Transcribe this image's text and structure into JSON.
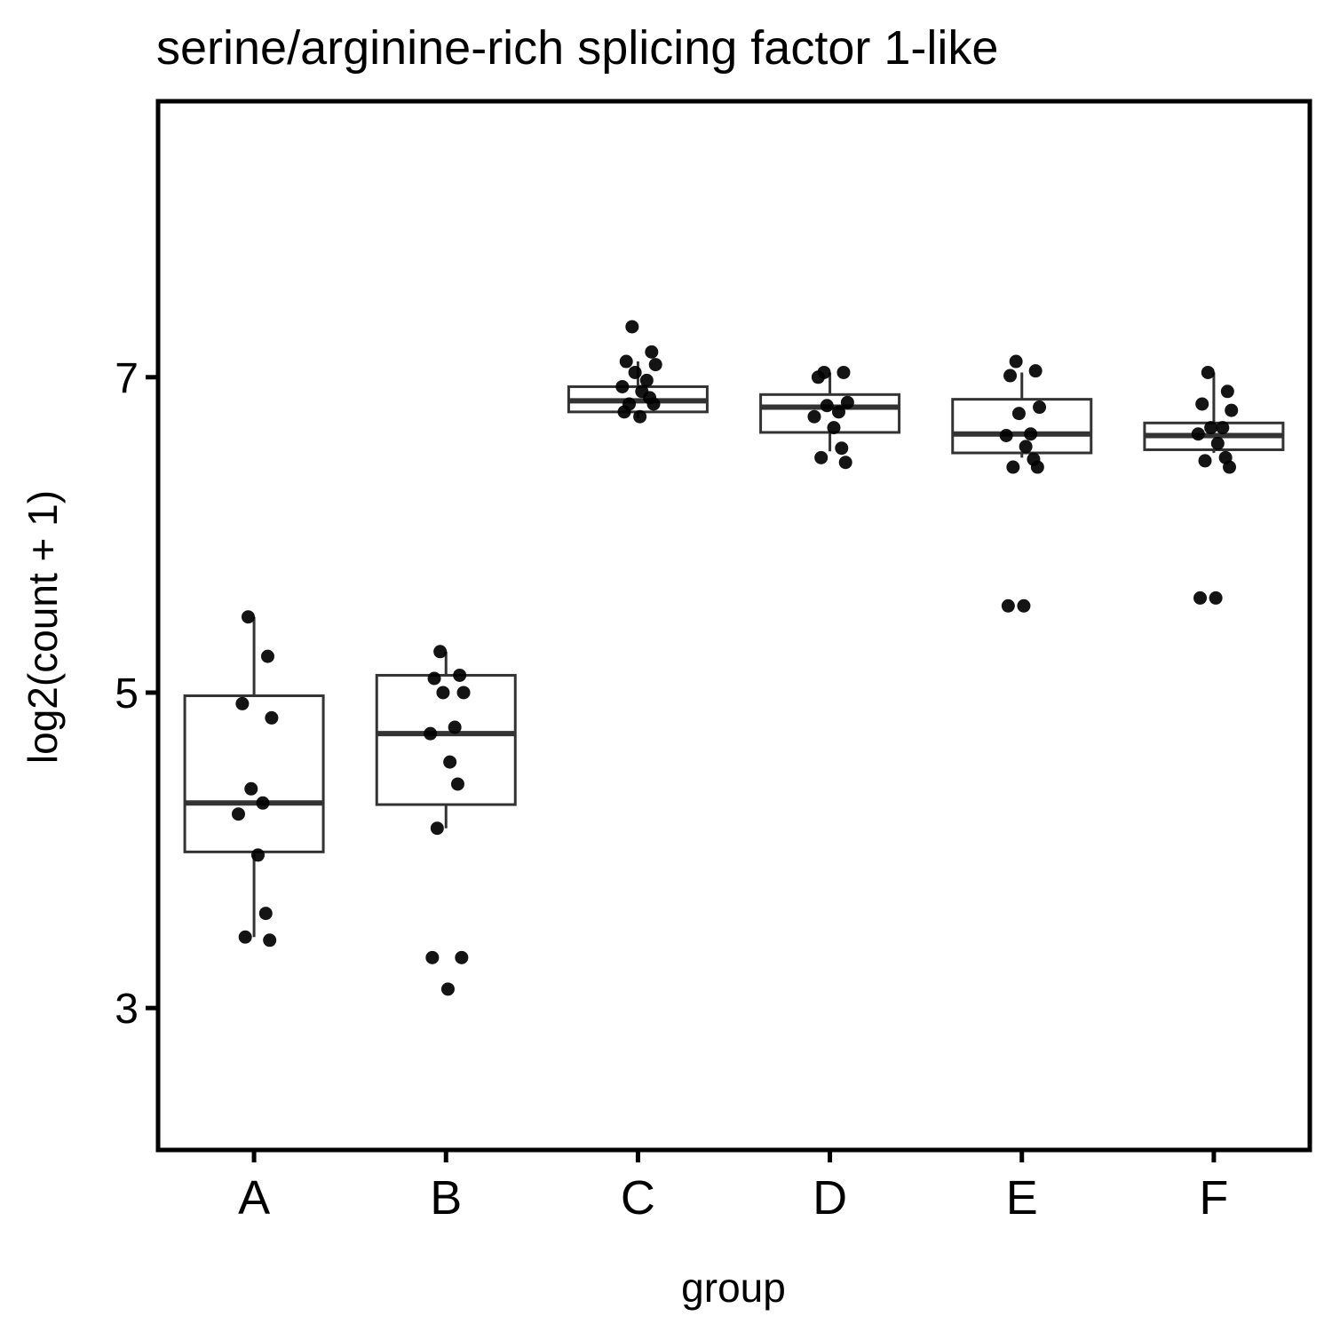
{
  "chart_data": {
    "type": "box",
    "title": "serine/arginine-rich splicing factor 1-like",
    "xlabel": "group",
    "ylabel": "log2(count + 1)",
    "ylim": [
      2.1,
      8.75
    ],
    "yticks": [
      3,
      5,
      7
    ],
    "categories": [
      "A",
      "B",
      "C",
      "D",
      "E",
      "F"
    ],
    "boxes": [
      {
        "group": "A",
        "q1": 3.99,
        "median": 4.3,
        "q3": 4.98,
        "whisker_low": 3.45,
        "whisker_high": 5.48
      },
      {
        "group": "B",
        "q1": 4.29,
        "median": 4.74,
        "q3": 5.11,
        "whisker_low": 4.14,
        "whisker_high": 5.26
      },
      {
        "group": "C",
        "q1": 6.78,
        "median": 6.85,
        "q3": 6.94,
        "whisker_low": 6.74,
        "whisker_high": 7.1
      },
      {
        "group": "D",
        "q1": 6.65,
        "median": 6.81,
        "q3": 6.89,
        "whisker_low": 6.53,
        "whisker_high": 7.03
      },
      {
        "group": "E",
        "q1": 6.52,
        "median": 6.64,
        "q3": 6.86,
        "whisker_low": 6.49,
        "whisker_high": 7.03
      },
      {
        "group": "F",
        "q1": 6.54,
        "median": 6.63,
        "q3": 6.71,
        "whisker_low": 6.52,
        "whisker_high": 7.03
      }
    ],
    "points": [
      {
        "group": "A",
        "y": [
          5.48,
          5.23,
          4.93,
          4.84,
          4.39,
          4.3,
          4.23,
          3.97,
          3.6,
          3.45,
          3.43
        ]
      },
      {
        "group": "B",
        "y": [
          5.26,
          5.11,
          5.09,
          5.0,
          5.0,
          4.78,
          4.74,
          4.56,
          4.42,
          4.14,
          3.32,
          3.32,
          3.12
        ]
      },
      {
        "group": "C",
        "y": [
          7.32,
          7.16,
          7.1,
          7.08,
          7.03,
          6.98,
          6.94,
          6.91,
          6.87,
          6.83,
          6.83,
          6.78,
          6.75
        ]
      },
      {
        "group": "D",
        "y": [
          7.03,
          7.03,
          7.0,
          6.84,
          6.82,
          6.78,
          6.75,
          6.68,
          6.55,
          6.49,
          6.46
        ]
      },
      {
        "group": "E",
        "y": [
          7.1,
          7.04,
          7.01,
          6.81,
          6.77,
          6.64,
          6.63,
          6.56,
          6.48,
          6.43,
          6.43,
          5.55,
          5.55
        ]
      },
      {
        "group": "F",
        "y": [
          7.03,
          6.91,
          6.83,
          6.79,
          6.68,
          6.68,
          6.64,
          6.58,
          6.49,
          6.47,
          6.43,
          5.6,
          5.6
        ]
      }
    ],
    "legend": "none",
    "grid": false
  }
}
